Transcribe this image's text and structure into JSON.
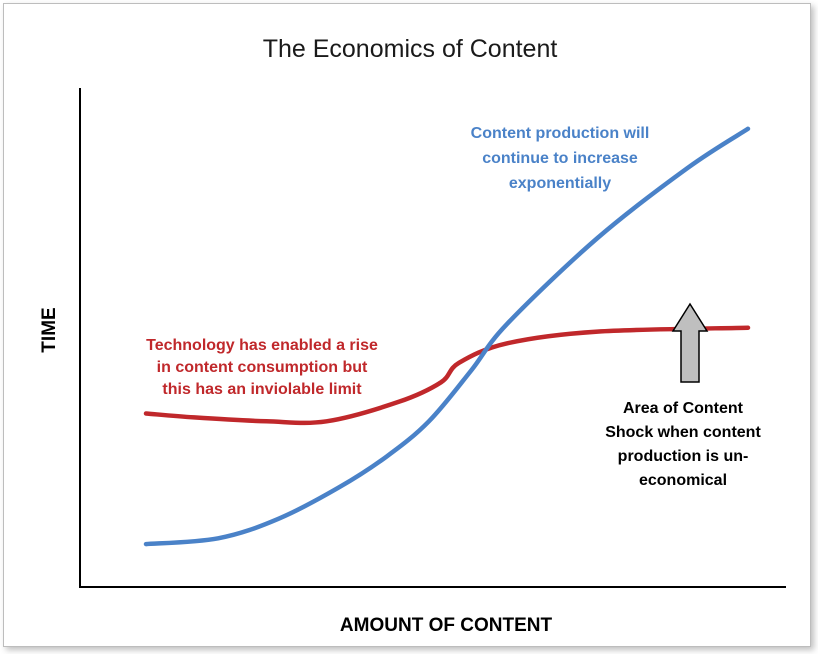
{
  "chart_data": {
    "type": "line",
    "title": "The Economics of Content",
    "xlabel": "AMOUNT OF CONTENT",
    "ylabel": "TIME",
    "series": [
      {
        "color": "#c0282b",
        "points": [
          [
            0,
            0.35
          ],
          [
            0.08,
            0.34
          ],
          [
            0.2,
            0.33
          ],
          [
            0.3,
            0.33
          ],
          [
            0.42,
            0.38
          ],
          [
            0.49,
            0.43
          ],
          [
            0.52,
            0.48
          ],
          [
            0.6,
            0.53
          ],
          [
            0.75,
            0.56
          ],
          [
            1,
            0.57
          ]
        ]
      },
      {
        "color": "#4a82c8",
        "points": [
          [
            0,
            0.015
          ],
          [
            0.12,
            0.03
          ],
          [
            0.22,
            0.08
          ],
          [
            0.32,
            0.16
          ],
          [
            0.4,
            0.24
          ],
          [
            0.47,
            0.33
          ],
          [
            0.54,
            0.46
          ],
          [
            0.6,
            0.58
          ],
          [
            0.75,
            0.8
          ],
          [
            0.9,
            0.98
          ],
          [
            1,
            1.08
          ]
        ]
      }
    ],
    "annotations": [
      {
        "id": "consumption",
        "color": "#c0282b",
        "lines": [
          "Technology has enabled a rise",
          "in content consumption but",
          "this has an inviolable limit"
        ]
      },
      {
        "id": "production",
        "color": "#4a82c8",
        "lines": [
          "Content production will",
          "continue to increase",
          "exponentially"
        ]
      },
      {
        "id": "shock",
        "color": "#000000",
        "lines": [
          "Area of Content",
          "Shock when content",
          "production is un-",
          "economical"
        ]
      }
    ],
    "grid": false,
    "legend": "none"
  }
}
